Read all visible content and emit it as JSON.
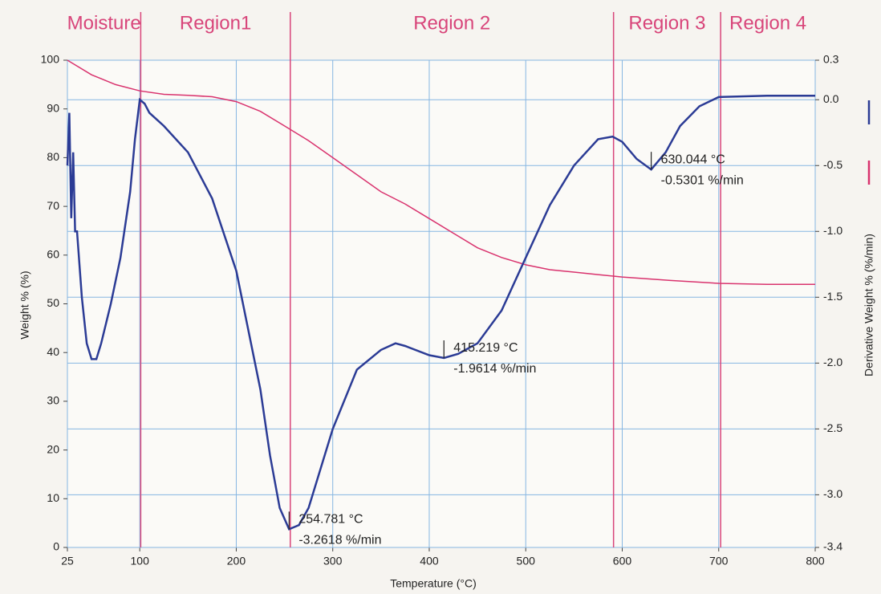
{
  "chart_data": {
    "type": "line",
    "xlabel": "Temperature (°C)",
    "ylabel": "Weight % (%)",
    "y2label": "Derivative Weight % (%/min)",
    "xlim": [
      25,
      800
    ],
    "xticks": [
      25,
      100,
      200,
      300,
      400,
      500,
      600,
      700,
      800
    ],
    "ylim": [
      0,
      100
    ],
    "yticks": [
      0,
      10,
      20,
      30,
      40,
      50,
      60,
      70,
      80,
      90,
      100
    ],
    "y2lim": [
      -3.4,
      0.3
    ],
    "y2ticks": [
      0.3,
      {
        "value": 0,
        "label": "0.0"
      },
      -0.5,
      {
        "value": -1,
        "label": "-1.0"
      },
      -1.5,
      {
        "value": -2,
        "label": "-2.0"
      },
      -2.5,
      {
        "value": -3,
        "label": "-3.0"
      },
      -3.4
    ],
    "grid": true,
    "grid_color": "#86b6e2",
    "series": [
      {
        "color": "#d9336e",
        "axis": "y",
        "x": [
          25,
          50,
          75,
          100,
          125,
          150,
          175,
          200,
          225,
          250,
          275,
          300,
          325,
          350,
          375,
          400,
          425,
          450,
          475,
          500,
          525,
          550,
          575,
          600,
          650,
          700,
          750,
          800
        ],
        "values": [
          100,
          97,
          95,
          93.7,
          93,
          92.8,
          92.5,
          91.5,
          89.5,
          86.5,
          83.5,
          80,
          76.5,
          73,
          70.5,
          67.5,
          64.5,
          61.5,
          59.5,
          58,
          57,
          56.5,
          56,
          55.5,
          54.8,
          54.2,
          54,
          54
        ]
      },
      {
        "color": "#2b3b95",
        "axis": "y2",
        "x": [
          25,
          27,
          29,
          31,
          33,
          35,
          40,
          45,
          50,
          55,
          60,
          70,
          80,
          90,
          95,
          100,
          105,
          110,
          125,
          150,
          175,
          200,
          225,
          235,
          245,
          254.781,
          265,
          275,
          300,
          325,
          350,
          365,
          375,
          400,
          415.219,
          430,
          450,
          475,
          500,
          525,
          550,
          575,
          590,
          600,
          615,
          630.044,
          645,
          660,
          680,
          700,
          750,
          800
        ],
        "values": [
          -0.5,
          -0.1,
          -0.9,
          -0.4,
          -1.0,
          -1.0,
          -1.5,
          -1.85,
          -1.97,
          -1.97,
          -1.85,
          -1.55,
          -1.2,
          -0.7,
          -0.3,
          0.0,
          -0.03,
          -0.1,
          -0.2,
          -0.4,
          -0.75,
          -1.3,
          -2.2,
          -2.7,
          -3.1,
          -3.2618,
          -3.23,
          -3.1,
          -2.5,
          -2.05,
          -1.9,
          -1.85,
          -1.87,
          -1.94,
          -1.9614,
          -1.93,
          -1.85,
          -1.6,
          -1.2,
          -0.8,
          -0.5,
          -0.3,
          -0.28,
          -0.32,
          -0.45,
          -0.5301,
          -0.4,
          -0.2,
          -0.05,
          0.02,
          0.03,
          0.03
        ]
      }
    ],
    "region_lines": [
      101,
      256,
      591,
      702
    ],
    "region_color": "#d8457a",
    "region_labels": [
      "Moisture",
      "Region1",
      "Region 2",
      "Region 3",
      "Region 4"
    ],
    "annotations": [
      {
        "x": 254.781,
        "y": -3.2618,
        "text": [
          "254.781 °C",
          "-3.2618 %/min"
        ]
      },
      {
        "x": 415.219,
        "y": -1.9614,
        "text": [
          "415.219 °C",
          "-1.9614 %/min"
        ]
      },
      {
        "x": 630.044,
        "y": -0.5301,
        "text": [
          "630.044 °C",
          "-0.5301 %/min"
        ]
      }
    ]
  }
}
